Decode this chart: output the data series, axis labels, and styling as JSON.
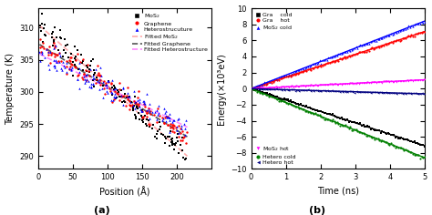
{
  "panel_a": {
    "title": "(a)",
    "xlabel": "Position (Å)",
    "ylabel": "Temperature (K)",
    "xlim": [
      0,
      250
    ],
    "ylim": [
      288,
      313
    ],
    "yticks": [
      290,
      295,
      300,
      305,
      310
    ],
    "xticks": [
      0,
      50,
      100,
      150,
      200
    ],
    "mos2_color": "#000000",
    "graphene_color": "#ff0000",
    "hetero_color": "#0000ff",
    "fitted_mos2_color": "#ffaaaa",
    "fitted_graphene_color": "#555555",
    "fitted_hetero_color": "#ff88ff"
  },
  "panel_b": {
    "title": "(b)",
    "xlabel": "Time (ns)",
    "ylabel": "Energy(×10³eV)",
    "xlim": [
      0,
      5
    ],
    "ylim": [
      -10,
      10
    ],
    "yticks": [
      -10,
      -8,
      -6,
      -4,
      -2,
      0,
      2,
      4,
      6,
      8,
      10
    ],
    "xticks": [
      0,
      1,
      2,
      3,
      4,
      5
    ],
    "gra_cold_slope": -1.42,
    "gra_hot_slope": 1.42,
    "mos2_cold_slope": 1.68,
    "mos2_hot_slope": 0.22,
    "hetero_cold_slope": -1.72,
    "hetero_hot_slope": -0.13,
    "gra_cold_color": "#000000",
    "gra_hot_color": "#ff0000",
    "mos2_cold_color": "#0000ff",
    "mos2_hot_color": "#ff00ff",
    "hetero_cold_color": "#008000",
    "hetero_hot_color": "#000080"
  }
}
